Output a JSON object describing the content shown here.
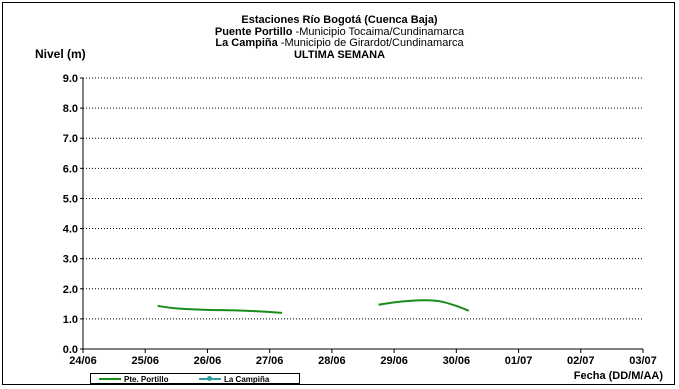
{
  "title": {
    "line1": "Estaciones Río Bogotá (Cuenca Baja)",
    "line2_bold": "Puente Portillo",
    "line2_rest": " -Municipio Tocaima/Cundinamarca",
    "line3_bold": "La Campiña",
    "line3_rest": " -Municipio de Girardot/Cundinamarca",
    "line4": "ULTIMA SEMANA"
  },
  "chart_data": {
    "type": "line",
    "ylabel": "Nivel (m)",
    "xlabel": "Fecha (DD/M/AA)",
    "ylim": [
      0,
      9
    ],
    "yticks": [
      "0.0",
      "1.0",
      "2.0",
      "3.0",
      "4.0",
      "5.0",
      "6.0",
      "7.0",
      "8.0",
      "9.0"
    ],
    "x_categories": [
      "24/06",
      "25/06",
      "26/06",
      "27/06",
      "28/06",
      "29/06",
      "30/06",
      "01/07",
      "02/07",
      "03/07"
    ],
    "grid": true,
    "legend_position": "bottom-left",
    "series": [
      {
        "name": "Pte. Portillo",
        "color": "#1a8c1a",
        "segments": [
          [
            [
              1.2,
              1.43
            ],
            [
              1.5,
              1.35
            ],
            [
              2.0,
              1.3
            ],
            [
              2.5,
              1.28
            ],
            [
              3.0,
              1.23
            ],
            [
              3.2,
              1.2
            ]
          ],
          [
            [
              4.75,
              1.47
            ],
            [
              5.0,
              1.55
            ],
            [
              5.25,
              1.6
            ],
            [
              5.5,
              1.62
            ],
            [
              5.75,
              1.58
            ],
            [
              6.0,
              1.43
            ],
            [
              6.2,
              1.27
            ]
          ]
        ]
      },
      {
        "name": "La Campiña",
        "color": "#2e9e9e",
        "segments": []
      }
    ]
  }
}
